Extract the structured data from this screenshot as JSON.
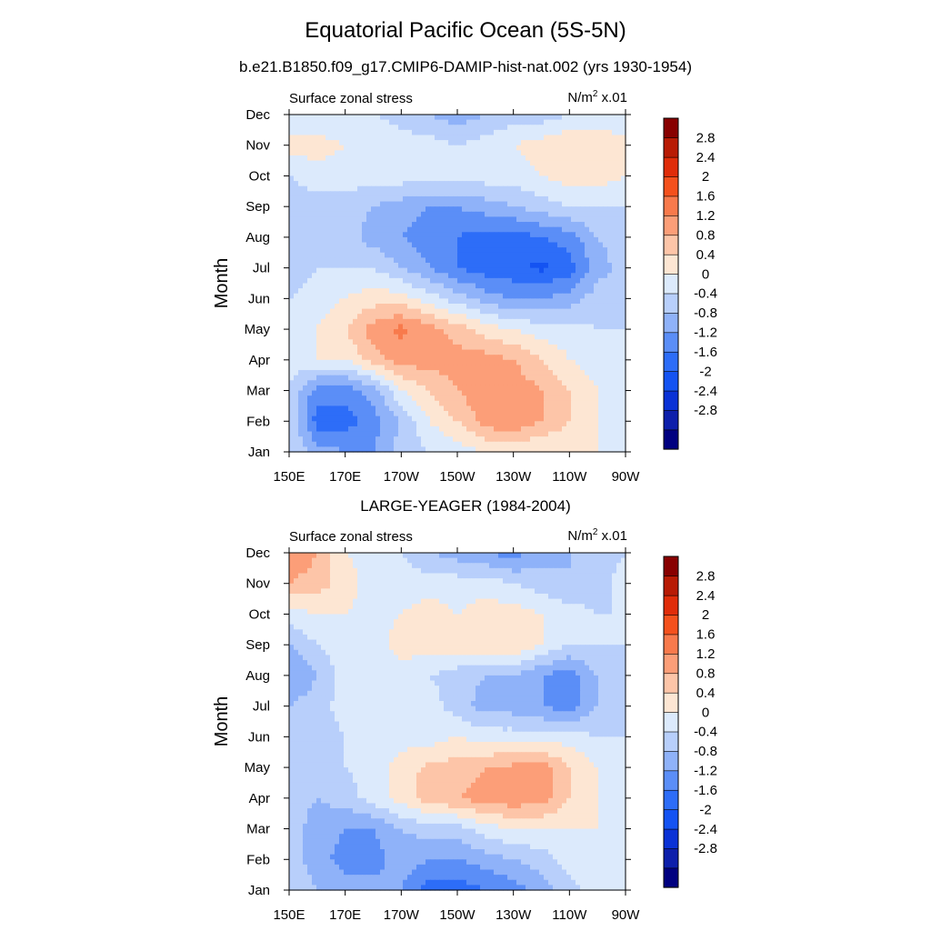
{
  "figure": {
    "title": "Equatorial Pacific Ocean (5S-5N)"
  },
  "panels": [
    {
      "subtitle": "b.e21.B1850.f09_g17.CMIP6-DAMIP-hist-nat.002 (yrs 1930-1954)",
      "left_string": "Surface zonal stress",
      "units_base": "N/m",
      "units_exp": "2",
      "units_scale": " x.01"
    },
    {
      "subtitle": "LARGE-YEAGER (1984-2004)",
      "left_string": "Surface zonal stress",
      "units_base": "N/m",
      "units_exp": "2",
      "units_scale": " x.01"
    }
  ],
  "chart_data": [
    {
      "type": "heatmap",
      "title": "b.e21.B1850.f09_g17.CMIP6-DAMIP-hist-nat.002 (yrs 1930-1954)",
      "ylabel": "Month",
      "xlabel": "",
      "x_ticks": [
        "150E",
        "170E",
        "170W",
        "150W",
        "130W",
        "110W",
        "90W"
      ],
      "x_tick_values": [
        150,
        170,
        190,
        210,
        230,
        250,
        270
      ],
      "xlim": [
        150,
        270
      ],
      "y_ticks": [
        "Jan",
        "Feb",
        "Mar",
        "Apr",
        "May",
        "Jun",
        "Jul",
        "Aug",
        "Sep",
        "Oct",
        "Nov",
        "Dec"
      ],
      "lon": [
        150,
        160,
        170,
        180,
        190,
        200,
        210,
        220,
        230,
        240,
        250,
        260,
        270
      ],
      "values": [
        [
          0.0,
          -0.6,
          -0.8,
          -0.8,
          -0.2,
          0.0,
          0.2,
          0.4,
          0.4,
          0.4,
          0.4,
          0.4,
          0.0
        ],
        [
          0.0,
          -1.4,
          -1.4,
          -1.0,
          -0.4,
          0.4,
          0.8,
          1.4,
          1.6,
          1.2,
          0.8,
          0.4,
          0.0
        ],
        [
          0.0,
          -1.0,
          -1.0,
          -0.6,
          0.4,
          0.8,
          1.2,
          1.5,
          1.5,
          1.2,
          0.8,
          0.4,
          0.0
        ],
        [
          0.2,
          0.4,
          0.4,
          1.0,
          1.4,
          1.4,
          1.4,
          1.4,
          1.2,
          0.8,
          0.4,
          0.2,
          0.0
        ],
        [
          0.0,
          0.4,
          0.8,
          1.4,
          1.7,
          1.4,
          1.0,
          0.6,
          0.4,
          0.2,
          0.2,
          0.0,
          0.0
        ],
        [
          0.0,
          0.2,
          0.4,
          0.6,
          0.6,
          0.2,
          -0.2,
          -0.6,
          -0.8,
          -0.8,
          -0.6,
          -0.2,
          0.0
        ],
        [
          -0.2,
          0.0,
          0.0,
          0.0,
          -0.4,
          -0.8,
          -1.2,
          -1.4,
          -1.5,
          -1.7,
          -1.4,
          -0.6,
          -0.2
        ],
        [
          -0.4,
          -0.2,
          -0.2,
          -0.6,
          -0.8,
          -1.0,
          -1.2,
          -1.4,
          -1.4,
          -1.2,
          -1.0,
          -0.4,
          -0.2
        ],
        [
          -0.2,
          -0.2,
          -0.2,
          -0.4,
          -0.6,
          -0.8,
          -0.8,
          -0.6,
          -0.4,
          -0.2,
          0.0,
          0.0,
          0.0
        ],
        [
          0.0,
          0.2,
          0.2,
          0.2,
          0.2,
          0.2,
          0.2,
          0.2,
          0.2,
          0.4,
          0.6,
          0.6,
          0.4
        ],
        [
          0.6,
          0.6,
          0.4,
          0.4,
          0.2,
          0.2,
          0.0,
          0.2,
          0.4,
          0.6,
          0.8,
          0.8,
          0.6
        ],
        [
          0.0,
          0.0,
          0.0,
          0.0,
          -0.2,
          -0.4,
          -0.6,
          -0.4,
          -0.2,
          -0.2,
          0.0,
          0.0,
          0.0
        ]
      ],
      "contour_levels": [
        -2.8,
        -2.4,
        -2.0,
        -1.6,
        -1.2,
        -0.8,
        -0.4,
        0,
        0.4,
        0.8,
        1.2,
        1.6,
        2.0,
        2.4,
        2.8
      ],
      "colorbar_labels": [
        "2.8",
        "2.4",
        "2",
        "1.6",
        "1.2",
        "0.8",
        "0.4",
        "0",
        "-0.4",
        "-0.8",
        "-1.2",
        "-1.6",
        "-2",
        "-2.4",
        "-2.8"
      ],
      "colors": [
        "#000080",
        "#0d1fab",
        "#0a32d6",
        "#1453f2",
        "#2d6df8",
        "#5b8ef7",
        "#8fb2f9",
        "#b8cffb",
        "#dceafc",
        "#fde6d3",
        "#fdc5a8",
        "#fc9e78",
        "#f87a4c",
        "#f4511d",
        "#e02d0a",
        "#b81b05",
        "#880000"
      ],
      "grid": false
    },
    {
      "type": "heatmap",
      "title": "LARGE-YEAGER (1984-2004)",
      "ylabel": "Month",
      "xlabel": "",
      "x_ticks": [
        "150E",
        "170E",
        "170W",
        "150W",
        "130W",
        "110W",
        "90W"
      ],
      "x_tick_values": [
        150,
        170,
        190,
        210,
        230,
        250,
        270
      ],
      "xlim": [
        150,
        270
      ],
      "y_ticks": [
        "Jan",
        "Feb",
        "Mar",
        "Apr",
        "May",
        "Jun",
        "Jul",
        "Aug",
        "Sep",
        "Oct",
        "Nov",
        "Dec"
      ],
      "lon": [
        150,
        160,
        170,
        180,
        190,
        200,
        210,
        220,
        230,
        240,
        250,
        260,
        270
      ],
      "values": [
        [
          0.0,
          -0.4,
          -0.6,
          -0.6,
          -0.8,
          -1.4,
          -1.4,
          -1.2,
          -1.0,
          -0.6,
          -0.2,
          0.2,
          0.2
        ],
        [
          -0.2,
          -0.6,
          -1.0,
          -1.0,
          -0.6,
          -0.8,
          -0.8,
          -0.6,
          -0.4,
          -0.2,
          0.2,
          0.4,
          0.2
        ],
        [
          -0.2,
          -0.6,
          -0.8,
          -0.8,
          -0.4,
          -0.2,
          -0.2,
          0.2,
          0.4,
          0.4,
          0.4,
          0.4,
          0.2
        ],
        [
          -0.2,
          -0.4,
          -0.2,
          0.2,
          0.6,
          1.0,
          1.2,
          1.4,
          1.5,
          1.4,
          0.8,
          0.4,
          0.2
        ],
        [
          -0.2,
          -0.2,
          0.0,
          0.2,
          0.6,
          0.9,
          1.0,
          1.2,
          1.3,
          1.4,
          0.8,
          0.4,
          0.2
        ],
        [
          -0.2,
          -0.2,
          0.0,
          0.2,
          0.2,
          0.2,
          0.4,
          0.2,
          0.2,
          0.2,
          0.2,
          0.0,
          0.0
        ],
        [
          -0.4,
          -0.2,
          0.2,
          0.2,
          0.2,
          0.2,
          -0.2,
          -0.6,
          -0.6,
          -0.8,
          -1.0,
          -0.4,
          -0.2
        ],
        [
          -0.8,
          -0.4,
          0.2,
          0.2,
          0.2,
          0.0,
          -0.2,
          -0.4,
          -0.4,
          -0.8,
          -1.0,
          -0.4,
          0.0
        ],
        [
          -0.4,
          0.0,
          0.2,
          0.2,
          0.6,
          0.6,
          0.6,
          0.8,
          0.8,
          0.4,
          0.0,
          0.0,
          0.0
        ],
        [
          0.2,
          0.4,
          0.4,
          0.2,
          0.4,
          0.6,
          0.4,
          0.6,
          0.6,
          0.4,
          0.2,
          0.0,
          0.0
        ],
        [
          1.2,
          1.0,
          0.6,
          0.2,
          0.2,
          0.2,
          0.2,
          0.2,
          0.0,
          -0.2,
          -0.4,
          -0.2,
          0.2
        ],
        [
          1.6,
          1.2,
          0.4,
          0.2,
          0.0,
          -0.4,
          -0.6,
          -0.8,
          -1.0,
          -0.6,
          -0.4,
          -0.2,
          0.0
        ]
      ],
      "contour_levels": [
        -2.8,
        -2.4,
        -2.0,
        -1.6,
        -1.2,
        -0.8,
        -0.4,
        0,
        0.4,
        0.8,
        1.2,
        1.6,
        2.0,
        2.4,
        2.8
      ],
      "colorbar_labels": [
        "2.8",
        "2.4",
        "2",
        "1.6",
        "1.2",
        "0.8",
        "0.4",
        "0",
        "-0.4",
        "-0.8",
        "-1.2",
        "-1.6",
        "-2",
        "-2.4",
        "-2.8"
      ],
      "colors": [
        "#000080",
        "#0d1fab",
        "#0a32d6",
        "#1453f2",
        "#2d6df8",
        "#5b8ef7",
        "#8fb2f9",
        "#b8cffb",
        "#dceafc",
        "#fde6d3",
        "#fdc5a8",
        "#fc9e78",
        "#f87a4c",
        "#f4511d",
        "#e02d0a",
        "#b81b05",
        "#880000"
      ],
      "grid": false
    }
  ]
}
